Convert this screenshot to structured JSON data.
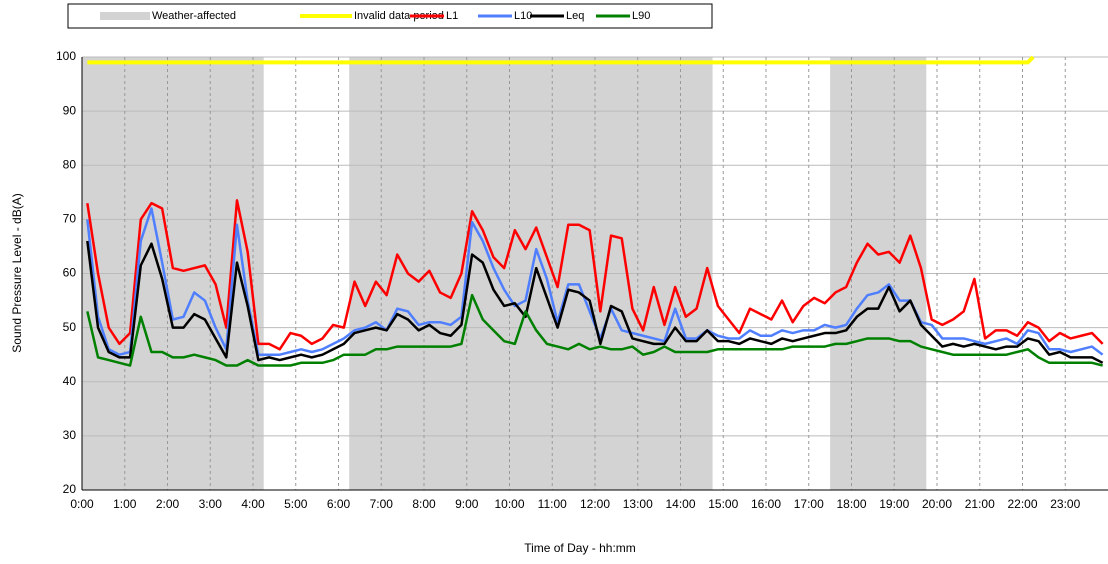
{
  "chart_data": {
    "type": "line",
    "y_label": "Sound Pressure Level - dB(A)",
    "x_label": "Time of Day - hh:mm",
    "weather_label": "Weather-affected",
    "weather_color": "#d3d3d3",
    "weather_periods": [
      {
        "start": 0,
        "end": 4.25
      },
      {
        "start": 6.25,
        "end": 14.75
      },
      {
        "start": 17.5,
        "end": 19.75
      }
    ],
    "xlim": [
      0,
      24
    ],
    "ylim": [
      20,
      100
    ],
    "grid": true,
    "yticks": [
      20,
      30,
      40,
      50,
      60,
      70,
      80,
      90,
      100
    ],
    "xticks": [
      {
        "value": 0,
        "label": "0:00"
      },
      {
        "value": 1,
        "label": "1:00"
      },
      {
        "value": 2,
        "label": "2:00"
      },
      {
        "value": 3,
        "label": "3:00"
      },
      {
        "value": 4,
        "label": "4:00"
      },
      {
        "value": 5,
        "label": "5:00"
      },
      {
        "value": 6,
        "label": "6:00"
      },
      {
        "value": 7,
        "label": "7:00"
      },
      {
        "value": 8,
        "label": "8:00"
      },
      {
        "value": 9,
        "label": "9:00"
      },
      {
        "value": 10,
        "label": "10:00"
      },
      {
        "value": 11,
        "label": "11:00"
      },
      {
        "value": 12,
        "label": "12:00"
      },
      {
        "value": 13,
        "label": "13:00"
      },
      {
        "value": 14,
        "label": "14:00"
      },
      {
        "value": 15,
        "label": "15:00"
      },
      {
        "value": 16,
        "label": "16:00"
      },
      {
        "value": 17,
        "label": "17:00"
      },
      {
        "value": 18,
        "label": "18:00"
      },
      {
        "value": 19,
        "label": "19:00"
      },
      {
        "value": 20,
        "label": "20:00"
      },
      {
        "value": 21,
        "label": "21:00"
      },
      {
        "value": 22,
        "label": "22:00"
      },
      {
        "value": 23,
        "label": "23:00"
      }
    ],
    "x": [
      0.125,
      0.375,
      0.625,
      0.875,
      1.125,
      1.375,
      1.625,
      1.875,
      2.125,
      2.375,
      2.625,
      2.875,
      3.125,
      3.375,
      3.625,
      3.875,
      4.125,
      4.375,
      4.625,
      4.875,
      5.125,
      5.375,
      5.625,
      5.875,
      6.125,
      6.375,
      6.625,
      6.875,
      7.125,
      7.375,
      7.625,
      7.875,
      8.125,
      8.375,
      8.625,
      8.875,
      9.125,
      9.375,
      9.625,
      9.875,
      10.125,
      10.375,
      10.625,
      10.875,
      11.125,
      11.375,
      11.625,
      11.875,
      12.125,
      12.375,
      12.625,
      12.875,
      13.125,
      13.375,
      13.625,
      13.875,
      14.125,
      14.375,
      14.625,
      14.875,
      15.125,
      15.375,
      15.625,
      15.875,
      16.125,
      16.375,
      16.625,
      16.875,
      17.125,
      17.375,
      17.625,
      17.875,
      18.125,
      18.375,
      18.625,
      18.875,
      19.125,
      19.375,
      19.625,
      19.875,
      20.125,
      20.375,
      20.625,
      20.875,
      21.125,
      21.375,
      21.625,
      21.875,
      22.125,
      22.375,
      22.625,
      22.875,
      23.125,
      23.375,
      23.625,
      23.875
    ],
    "invalid": {
      "name": "Invalid data period",
      "color": "#ffff00",
      "x": [
        0.125,
        22.125,
        22.25
      ],
      "values": [
        99,
        99,
        100
      ]
    },
    "series": [
      {
        "name": "L1",
        "color": "#ff0000",
        "values": [
          73,
          60,
          50,
          47,
          49,
          70,
          73,
          72,
          61,
          60.5,
          61,
          61.5,
          58,
          50,
          73.5,
          64,
          47,
          47,
          46,
          49,
          48.5,
          47,
          48,
          50.5,
          50,
          58.5,
          54,
          58.5,
          56,
          63.5,
          60,
          58.5,
          60.5,
          56.5,
          55.5,
          60,
          71.5,
          68,
          63,
          61,
          68,
          64.5,
          68.5,
          63,
          57.5,
          69,
          69,
          68,
          53,
          67,
          66.5,
          53.5,
          49.5,
          57.5,
          50.5,
          57.5,
          52,
          53.5,
          61,
          54,
          51.5,
          49,
          53.5,
          52.5,
          51.5,
          55,
          51,
          54,
          55.5,
          54.5,
          56.5,
          57.5,
          62,
          65.5,
          63.5,
          64,
          62,
          67,
          61,
          51.5,
          50.5,
          51.5,
          53,
          59,
          48,
          49.5,
          49.5,
          48.5,
          51,
          50,
          47.5,
          49,
          48,
          48.5,
          49,
          47
        ]
      },
      {
        "name": "L10",
        "color": "#4f7fff",
        "values": [
          70,
          52,
          46,
          45,
          45.5,
          66,
          72,
          62,
          51.5,
          52,
          56.5,
          55,
          50,
          46,
          69,
          55,
          45,
          45,
          45,
          45.5,
          46,
          45.5,
          46,
          47,
          48,
          49.5,
          50,
          51,
          49.5,
          53.5,
          53,
          50.5,
          51,
          51,
          50.5,
          52,
          69.5,
          66,
          61,
          57,
          54,
          55,
          64.5,
          59,
          51,
          58,
          58,
          53,
          48,
          53.5,
          49.5,
          49,
          48.5,
          48,
          47.5,
          53.5,
          48,
          48,
          49.5,
          48.5,
          48,
          48,
          49.5,
          48.5,
          48.5,
          49.5,
          49,
          49.5,
          49.5,
          50.5,
          50,
          50.5,
          53.5,
          56,
          56.5,
          58,
          55,
          55,
          51,
          50.5,
          48,
          48,
          48,
          47.5,
          47,
          47.5,
          48,
          47,
          49.5,
          49,
          46,
          46,
          45.5,
          46,
          46.5,
          45
        ]
      },
      {
        "name": "Leq",
        "color": "#000000",
        "values": [
          66,
          50,
          45.5,
          44.5,
          44.5,
          61.5,
          65.5,
          59,
          50,
          50,
          52.5,
          51.5,
          48,
          44.5,
          62,
          54,
          44,
          44.5,
          44,
          44.5,
          45,
          44.5,
          45,
          46,
          47,
          49,
          49.5,
          50,
          49.5,
          52.5,
          51.5,
          49.5,
          50.5,
          49,
          48.5,
          50.5,
          63.5,
          62,
          57,
          54,
          54.5,
          52,
          61,
          55.5,
          50,
          57,
          56.5,
          55,
          47,
          54,
          53,
          48,
          47.5,
          47,
          47,
          50,
          47.5,
          47.5,
          49.5,
          47.5,
          47.5,
          47,
          48,
          47.5,
          47,
          48,
          47.5,
          48,
          48.5,
          49,
          49,
          49.5,
          52,
          53.5,
          53.5,
          57.5,
          53,
          55,
          50.5,
          48.5,
          46.5,
          47,
          46.5,
          47,
          46.5,
          46,
          46.5,
          46.5,
          48,
          47.5,
          45,
          45.5,
          44.5,
          44.5,
          44.5,
          43.5
        ]
      },
      {
        "name": "L90",
        "color": "#008000",
        "values": [
          53,
          44.5,
          44,
          43.5,
          43,
          52,
          45.5,
          45.5,
          44.5,
          44.5,
          45,
          44.5,
          44,
          43,
          43,
          44,
          43,
          43,
          43,
          43,
          43.5,
          43.5,
          43.5,
          44,
          45,
          45,
          45,
          46,
          46,
          46.5,
          46.5,
          46.5,
          46.5,
          46.5,
          46.5,
          47,
          56,
          51.5,
          49.5,
          47.5,
          47,
          53,
          49.5,
          47,
          46.5,
          46,
          47,
          46,
          46.5,
          46,
          46,
          46.5,
          45,
          45.5,
          46.5,
          45.5,
          45.5,
          45.5,
          45.5,
          46,
          46,
          46,
          46,
          46,
          46,
          46,
          46.5,
          46.5,
          46.5,
          46.5,
          47,
          47,
          47.5,
          48,
          48,
          48,
          47.5,
          47.5,
          46.5,
          46,
          45.5,
          45,
          45,
          45,
          45,
          45,
          45,
          45.5,
          46,
          44.5,
          43.5,
          43.5,
          43.5,
          43.5,
          43.5,
          43
        ]
      }
    ]
  }
}
